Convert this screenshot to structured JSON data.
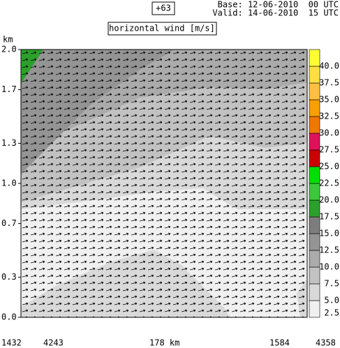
{
  "header": {
    "run_label": "+63",
    "base": "Base: 12-06-2010  00 UTC",
    "valid": "Valid: 14-06-2010  15 UTC"
  },
  "chart_data": {
    "type": "contour",
    "title": "horizontal wind [m/s]",
    "y_label": "km",
    "ylim": [
      0,
      2
    ],
    "yticks": [
      {
        "value": 0,
        "label": "0.0"
      },
      0.3,
      0.7,
      {
        "value": 1,
        "label": "1.0"
      },
      1.3,
      1.7,
      {
        "value": 2,
        "label": "2.0"
      }
    ],
    "x_labels": [
      "1432",
      "4243",
      "178 km",
      "1584",
      "4358"
    ],
    "colorbar": {
      "lim": [
        2.5,
        42.5
      ],
      "ticks": [
        2.5,
        {
          "value": 5,
          "label": "5.0"
        },
        7.5,
        {
          "value": 10,
          "label": "10.0"
        },
        12.5,
        {
          "value": 15,
          "label": "15.0"
        },
        17.5,
        {
          "value": 20,
          "label": "20.0"
        },
        22.5,
        {
          "value": 25,
          "label": "25.0"
        },
        27.5,
        {
          "value": 30,
          "label": "30.0"
        },
        32.5,
        {
          "value": 35,
          "label": "35.0"
        },
        37.5,
        {
          "value": 40,
          "label": "40.0"
        }
      ],
      "colors": [
        "#f0f0f0",
        "#d9d9d9",
        "#c2c2c2",
        "#ababab",
        "#949494",
        "#7d7d7d",
        "#2ca02c",
        "#3cc83c",
        "#00e000",
        "#cc0000",
        "#e0105a",
        "#f07800",
        "#f8a000",
        "#ffc040",
        "#ffe040",
        "#ffff30"
      ]
    }
  }
}
